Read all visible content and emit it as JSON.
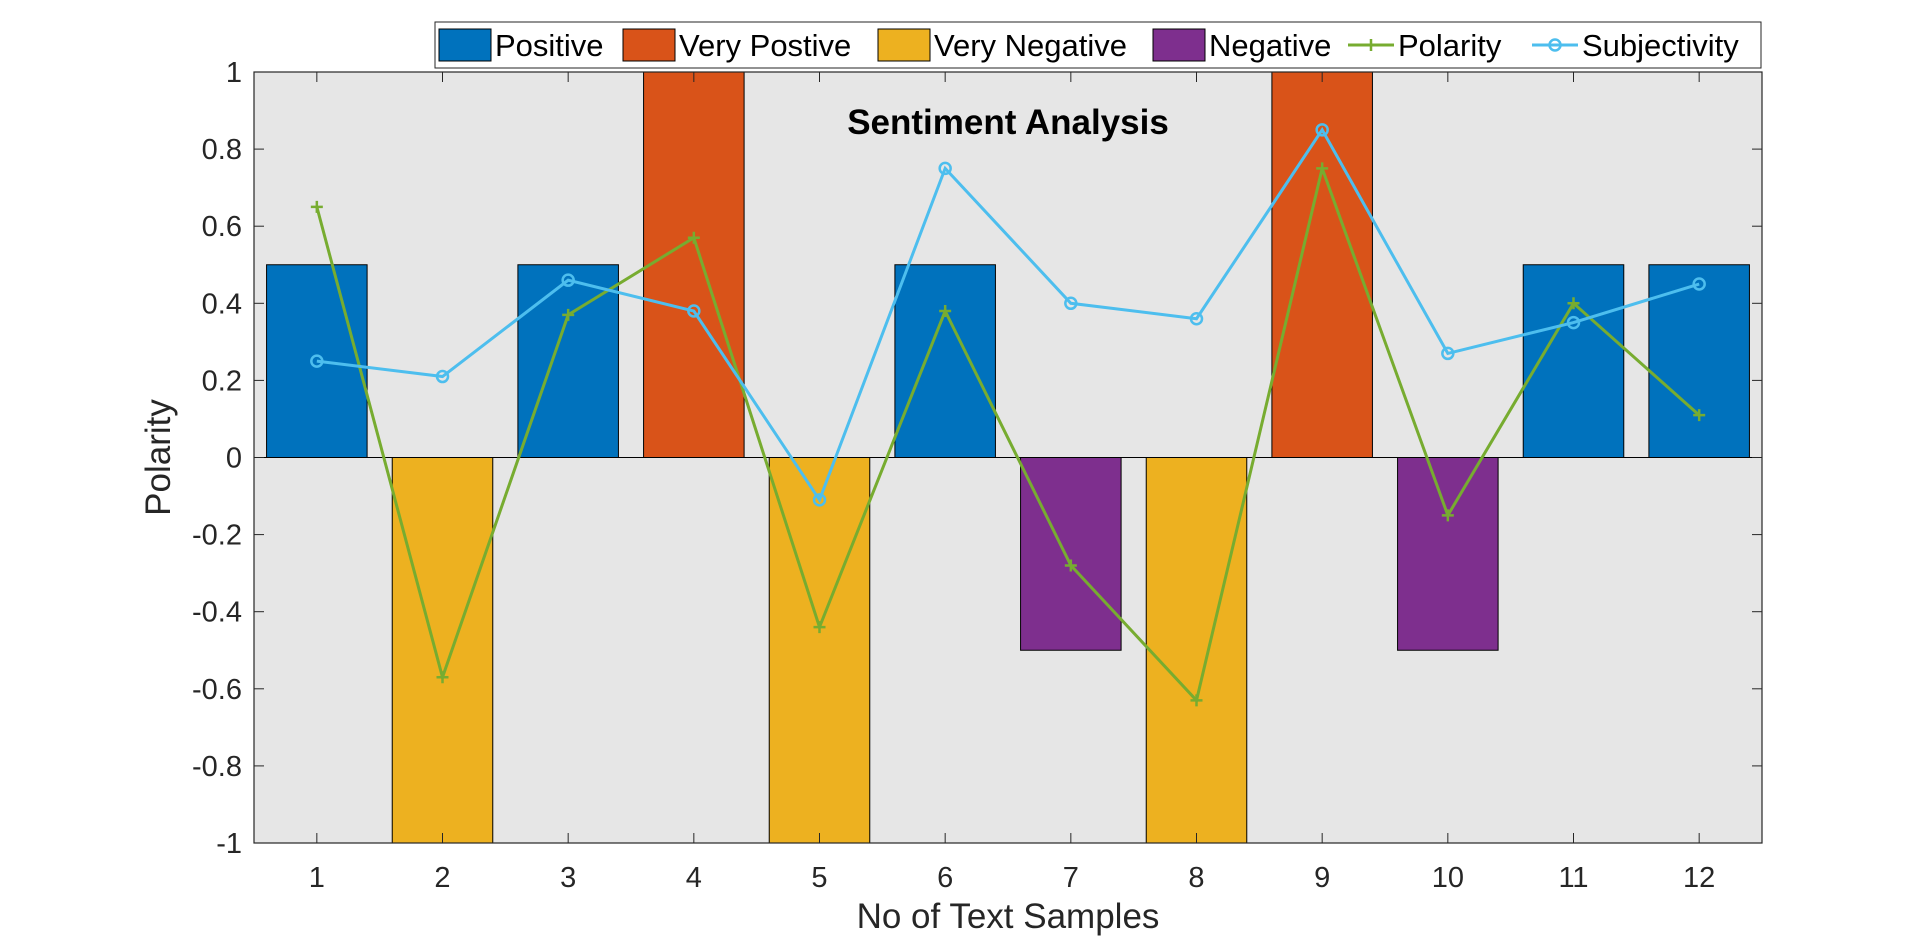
{
  "chart_data": {
    "type": "bar",
    "title": "Sentiment Analysis",
    "xlabel": "No of Text Samples",
    "ylabel": "Polarity",
    "categories": [
      "1",
      "2",
      "3",
      "4",
      "5",
      "6",
      "7",
      "8",
      "9",
      "10",
      "11",
      "12"
    ],
    "ylim": [
      -1,
      1
    ],
    "yticks": [
      -1,
      -0.8,
      -0.6,
      -0.4,
      -0.2,
      0,
      0.2,
      0.4,
      0.6,
      0.8,
      1
    ],
    "ytick_labels": [
      "-1",
      "-0.8",
      "-0.6",
      "-0.4",
      "-0.2",
      "0",
      "0.2",
      "0.4",
      "0.6",
      "0.8",
      "1"
    ],
    "grid": false,
    "legend_position": "top",
    "bar_series": [
      {
        "name": "Positive",
        "color": "#0072BD",
        "values": [
          0.5,
          null,
          0.5,
          null,
          null,
          0.5,
          null,
          null,
          null,
          null,
          0.5,
          0.5
        ]
      },
      {
        "name": "Very Postive",
        "color": "#D95319",
        "values": [
          null,
          null,
          null,
          1,
          null,
          null,
          null,
          null,
          1,
          null,
          null,
          null
        ]
      },
      {
        "name": "Very Negative",
        "color": "#EDB120",
        "values": [
          null,
          -1,
          null,
          null,
          -1,
          null,
          null,
          -1,
          null,
          null,
          null,
          null
        ]
      },
      {
        "name": "Negative",
        "color": "#7E2F8E",
        "values": [
          null,
          null,
          null,
          null,
          null,
          null,
          -0.5,
          null,
          null,
          -0.5,
          null,
          null
        ]
      }
    ],
    "line_series": [
      {
        "name": "Polarity",
        "color": "#77AC30",
        "marker": "plus",
        "values": [
          0.65,
          -0.57,
          0.37,
          0.57,
          -0.44,
          0.38,
          -0.28,
          -0.63,
          0.75,
          -0.15,
          0.4,
          0.11
        ]
      },
      {
        "name": "Subjectivity",
        "color": "#4DBEEE",
        "marker": "circle",
        "values": [
          0.25,
          0.21,
          0.46,
          0.38,
          -0.11,
          0.75,
          0.4,
          0.36,
          0.85,
          0.27,
          0.35,
          0.45
        ]
      }
    ]
  }
}
